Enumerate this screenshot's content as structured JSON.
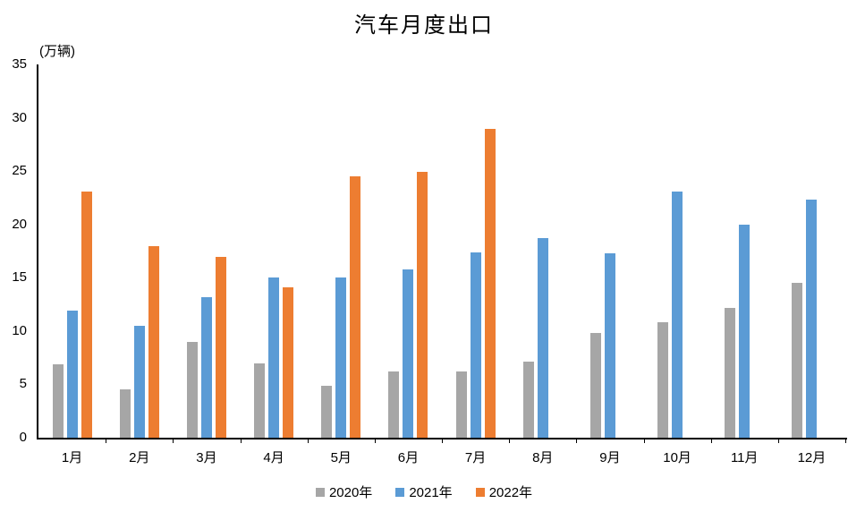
{
  "title": "汽车月度出口",
  "unit_label": "(万辆)",
  "chart_data": {
    "type": "bar",
    "title": "汽车月度出口",
    "ylabel": "万辆",
    "categories": [
      "1月",
      "2月",
      "3月",
      "4月",
      "5月",
      "6月",
      "7月",
      "8月",
      "9月",
      "10月",
      "11月",
      "12月"
    ],
    "series": [
      {
        "name": "2020年",
        "color": "#A6A6A6",
        "values": [
          6.9,
          4.5,
          9.0,
          7.0,
          4.9,
          6.2,
          6.2,
          7.1,
          9.8,
          10.8,
          12.2,
          14.5
        ]
      },
      {
        "name": "2021年",
        "color": "#5B9BD5",
        "values": [
          11.9,
          10.5,
          13.2,
          15.0,
          15.0,
          15.8,
          17.4,
          18.7,
          17.3,
          23.1,
          20.0,
          22.3
        ]
      },
      {
        "name": "2022年",
        "color": "#ED7D31",
        "values": [
          23.1,
          18.0,
          17.0,
          14.1,
          24.5,
          24.9,
          29.0,
          null,
          null,
          null,
          null,
          null
        ]
      }
    ],
    "ylim": [
      0,
      35
    ],
    "yticks": [
      0,
      5,
      10,
      15,
      20,
      25,
      30,
      35
    ],
    "grid": false,
    "legend_position": "bottom",
    "axis_color": "#000000",
    "background": "#ffffff"
  },
  "legend": {
    "items": [
      {
        "label": "2020年",
        "color": "#A6A6A6"
      },
      {
        "label": "2021年",
        "color": "#5B9BD5"
      },
      {
        "label": "2022年",
        "color": "#ED7D31"
      }
    ]
  }
}
